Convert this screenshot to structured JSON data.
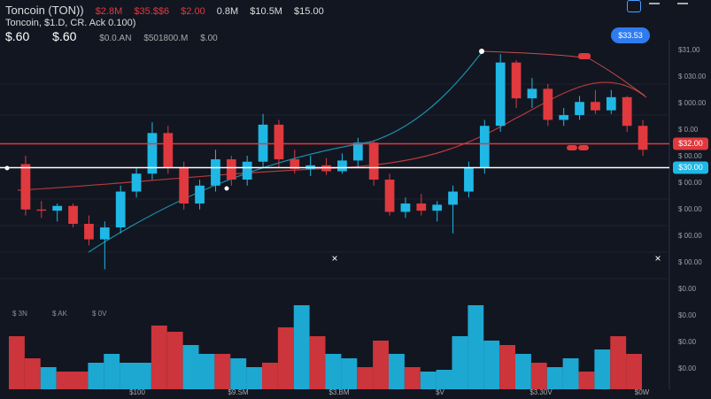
{
  "header": {
    "symbol": "Toncoin (TON))",
    "stats": [
      "$2.8M",
      "$35.$$6",
      "$2.00",
      "0.8M",
      "$10.5M",
      "$15.00"
    ],
    "subtitle": "Toncoin, $1.D, CR. Ack 0.100)",
    "prices": [
      "$.60",
      "$.60",
      "$0.0.AN",
      "$501800.M",
      "$.00"
    ],
    "button": "$33.53"
  },
  "axis_labels": {
    "right": [
      "$31.00",
      "$ 030.00",
      "$ 000.00",
      "$ 0.00",
      "$ 00.00",
      "$ 00.00",
      "$ 00.00",
      "$ 00.00",
      "$ 00.00",
      "$0.00",
      "$0.00",
      "$0.00",
      "$0.00"
    ],
    "volume_legend": [
      "$ 3N",
      "$ AK",
      "$ 0V"
    ],
    "bottom": [
      "$100",
      "$9.SM",
      "$3.BM",
      "$V",
      "$3.30V",
      "$0W"
    ]
  },
  "chart_data": {
    "type": "candlestick",
    "ylim": [
      19.6,
      40.7
    ],
    "up_color": "#1fb8e6",
    "down_color": "#e0393e",
    "price_lines": [
      {
        "value": 32,
        "label": "$32.00",
        "color": "#e0393e"
      },
      {
        "value": 30,
        "label": "$30.00",
        "color": "#1fb8e6"
      }
    ],
    "open": [
      30.3,
      26.5,
      26.4,
      26.8,
      25.3,
      24.0,
      25.0,
      28.0,
      29.5,
      32.9,
      30.0,
      27.0,
      28.5,
      30.7,
      29.0,
      30.5,
      33.6,
      30.7,
      29.9,
      30.2,
      29.7,
      30.6,
      32.1,
      29.0,
      26.3,
      27.0,
      26.4,
      26.9,
      28.0,
      30.0,
      33.5,
      38.8,
      35.8,
      36.6,
      34.0,
      34.4,
      35.5,
      34.8,
      35.9,
      33.5
    ],
    "high": [
      31.0,
      27.2,
      27.0,
      27.0,
      26.0,
      25.5,
      28.5,
      30.0,
      33.8,
      33.5,
      30.5,
      29.0,
      31.5,
      31.0,
      31.0,
      34.5,
      34.0,
      31.5,
      31.0,
      30.8,
      31.2,
      32.5,
      32.3,
      29.5,
      27.5,
      27.8,
      27.2,
      28.5,
      30.5,
      34.0,
      39.5,
      39.0,
      37.5,
      37.0,
      35.0,
      36.0,
      36.5,
      36.5,
      36.0,
      34.0
    ],
    "low": [
      26.0,
      25.8,
      25.5,
      25.0,
      23.5,
      21.5,
      24.5,
      27.5,
      29.0,
      29.5,
      26.5,
      26.5,
      28.0,
      28.5,
      28.5,
      30.0,
      30.0,
      29.5,
      29.3,
      29.4,
      29.5,
      30.0,
      28.5,
      26.0,
      25.8,
      26.0,
      25.5,
      24.5,
      27.5,
      29.5,
      33.0,
      35.0,
      35.0,
      33.5,
      33.5,
      34.0,
      34.5,
      34.5,
      33.0,
      31.0
    ],
    "close": [
      26.5,
      26.4,
      26.8,
      25.3,
      24.0,
      25.0,
      28.0,
      29.5,
      32.9,
      30.0,
      27.0,
      28.5,
      30.7,
      29.0,
      30.5,
      33.6,
      30.7,
      29.9,
      30.2,
      29.7,
      30.6,
      32.1,
      29.0,
      26.3,
      27.0,
      26.4,
      26.9,
      28.0,
      30.0,
      33.5,
      38.8,
      35.8,
      36.6,
      34.0,
      34.4,
      35.5,
      34.8,
      35.9,
      33.5,
      31.5
    ],
    "volume": [
      60,
      35,
      25,
      20,
      20,
      30,
      40,
      30,
      30,
      72,
      65,
      50,
      40,
      40,
      35,
      25,
      30,
      70,
      95,
      60,
      40,
      35,
      25,
      55,
      40,
      25,
      20,
      22,
      60,
      95,
      55,
      50,
      40,
      30,
      25,
      35,
      20,
      45,
      60,
      40
    ],
    "vlim": [
      0,
      100
    ]
  }
}
